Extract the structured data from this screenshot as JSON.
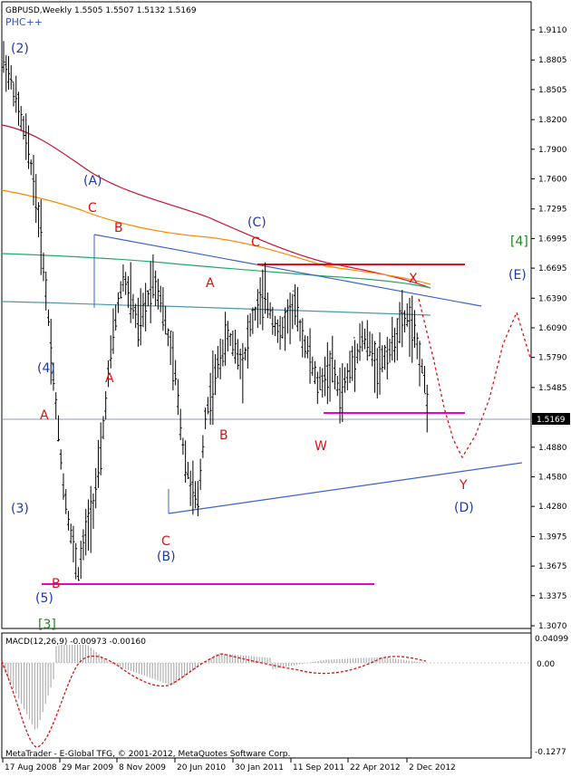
{
  "header": {
    "symbol_line": "GBPUSD,Weekly  1.5505 1.5507 1.5132 1.5169",
    "indicator": "PHC++"
  },
  "colors": {
    "wave_blue": "#1f3aa8",
    "wave_red": "#dd1111",
    "wave_green": "#1a8a1a",
    "magenta": "#ee00cc",
    "ma_red": "#cc1133",
    "ma_orange": "#ff8800",
    "ma_green": "#22aa66",
    "ma_teal": "#4a9aa8",
    "trendline": "#3a64c8",
    "projection": "#dd1111"
  },
  "price_axis": {
    "ticks": [
      "1.9110",
      "1.8805",
      "1.8505",
      "1.8200",
      "1.7900",
      "1.7600",
      "1.7295",
      "1.6995",
      "1.6695",
      "1.6390",
      "1.6090",
      "1.5790",
      "1.5485",
      "1.4880",
      "1.4580",
      "1.4280",
      "1.3975",
      "1.3675",
      "1.3375",
      "1.3070"
    ],
    "current_price": "1.5169"
  },
  "date_axis": {
    "ticks": [
      "17 Aug 2008",
      "29 Mar 2009",
      "8 Nov 2009",
      "20 Jun 2010",
      "30 Jan 2011",
      "11 Sep 2011",
      "22 Apr 2012",
      "2 Dec 2012"
    ]
  },
  "wave_labels": [
    {
      "text": "(2)",
      "color": "wave_blue"
    },
    {
      "text": "(A)",
      "color": "wave_blue"
    },
    {
      "text": "C",
      "color": "wave_red"
    },
    {
      "text": "B",
      "color": "wave_red"
    },
    {
      "text": "(C)",
      "color": "wave_blue"
    },
    {
      "text": "C",
      "color": "wave_red"
    },
    {
      "text": "[4]",
      "color": "wave_green"
    },
    {
      "text": "(E)",
      "color": "wave_blue"
    },
    {
      "text": "X",
      "color": "wave_red"
    },
    {
      "text": "A",
      "color": "wave_red"
    },
    {
      "text": "(4)",
      "color": "wave_blue"
    },
    {
      "text": "A",
      "color": "wave_red"
    },
    {
      "text": "A",
      "color": "wave_red"
    },
    {
      "text": "B",
      "color": "wave_red"
    },
    {
      "text": "W",
      "color": "wave_red"
    },
    {
      "text": "Y",
      "color": "wave_red"
    },
    {
      "text": "(3)",
      "color": "wave_blue"
    },
    {
      "text": "(D)",
      "color": "wave_blue"
    },
    {
      "text": "C",
      "color": "wave_red"
    },
    {
      "text": "(B)",
      "color": "wave_blue"
    },
    {
      "text": "B",
      "color": "wave_red"
    },
    {
      "text": "(5)",
      "color": "wave_blue"
    },
    {
      "text": "[3]",
      "color": "wave_green"
    }
  ],
  "macd": {
    "label": "MACD(12,26,9) -0.00973 -0.00160",
    "ticks": [
      "0.04099",
      "0.00",
      "-0.1277"
    ]
  },
  "footer": {
    "copyright": "MetaTrader - E-Global TFG, © 2001-2012, MetaQuotes Software Corp."
  },
  "chart_data": {
    "type": "line",
    "title": "GBPUSD,Weekly",
    "ylim": [
      1.307,
      1.911
    ],
    "series": [
      {
        "values": [
          1.88,
          1.86,
          1.83,
          1.8,
          1.76,
          1.7,
          1.62,
          1.53,
          1.45,
          1.4,
          1.36,
          1.4,
          1.43,
          1.48,
          1.56,
          1.62,
          1.66,
          1.64,
          1.61,
          1.63,
          1.66,
          1.64,
          1.6,
          1.56,
          1.49,
          1.45,
          1.43,
          1.52,
          1.55,
          1.58,
          1.6,
          1.59,
          1.57,
          1.61,
          1.63,
          1.64,
          1.62,
          1.6,
          1.62,
          1.63,
          1.6,
          1.58,
          1.55,
          1.56,
          1.57,
          1.54,
          1.56,
          1.58,
          1.6,
          1.59,
          1.57,
          1.58,
          1.59,
          1.61,
          1.62,
          1.6,
          1.57,
          1.5169
        ]
      }
    ],
    "moving_averages": [
      "MA red",
      "MA orange",
      "MA green",
      "MA teal"
    ],
    "macd": {
      "value": -0.00973,
      "signal": -0.0016,
      "ylim": [
        -0.1277,
        0.04099
      ]
    }
  }
}
